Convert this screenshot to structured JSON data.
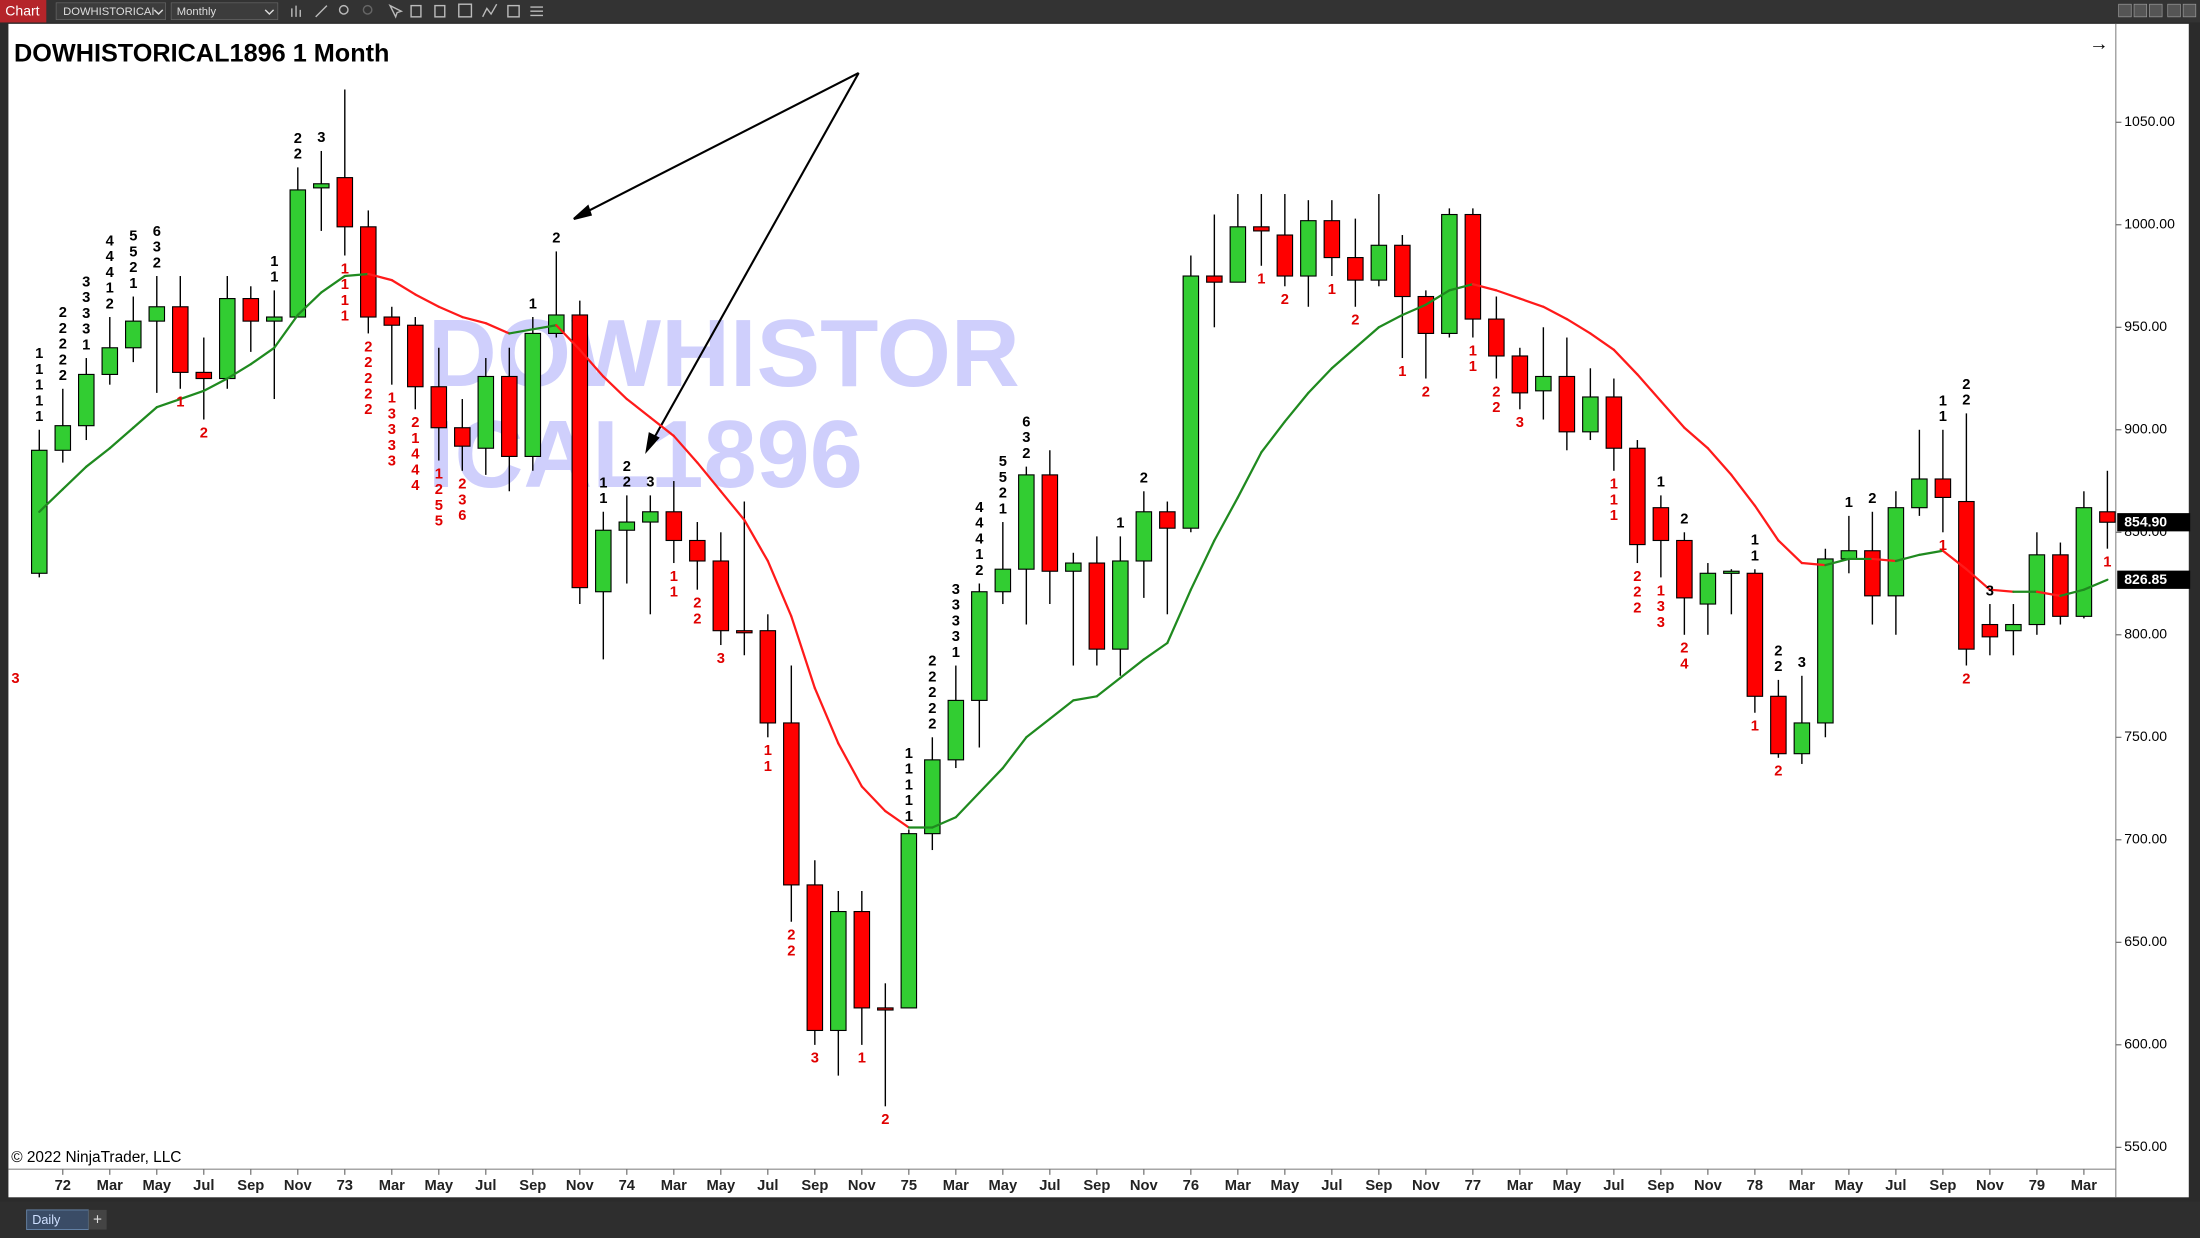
{
  "toolbar": {
    "chart_tab": "Chart",
    "instrument": "DOWHISTORICAI",
    "interval": "Monthly"
  },
  "nav_arrow": "→",
  "watermark": "DOWHISTORICAL1896",
  "copyright": "© 2022 NinjaTrader, LLC",
  "tabs": [
    "Daily"
  ],
  "add_tab": "+",
  "chart_data": {
    "type": "candlestick",
    "title": "DOWHISTORICAL1896 1 Month",
    "categories": [
      null,
      "72",
      null,
      "Mar",
      null,
      "May",
      null,
      "Jul",
      null,
      "Sep",
      null,
      "Nov",
      null,
      "73",
      null,
      "Mar",
      null,
      "May",
      null,
      "Jul",
      null,
      "Sep",
      null,
      "Nov",
      null,
      "74",
      null,
      "Mar",
      null,
      "May",
      null,
      "Jul",
      null,
      "Sep",
      null,
      "Nov",
      null,
      "75",
      null,
      "Mar",
      null,
      "May",
      null,
      "Jul",
      null,
      "Sep",
      null,
      "Nov",
      null,
      "76",
      null,
      "Mar",
      null,
      "May",
      null,
      "Jul",
      null,
      "Sep",
      null,
      "Nov",
      null,
      "77",
      null,
      "Mar",
      null,
      "May",
      null,
      "Jul",
      null,
      "Sep",
      null,
      "Nov",
      null,
      "78",
      null,
      "Mar",
      null,
      "May",
      null,
      "Jul",
      null,
      "Sep",
      null,
      "Nov",
      null,
      "79",
      null,
      "Mar",
      null
    ],
    "open": [
      830,
      890,
      902,
      927,
      940,
      953,
      960,
      928,
      925,
      964,
      953,
      955,
      1018,
      1023,
      999,
      955,
      951,
      921,
      901,
      891,
      926,
      887,
      947,
      956,
      821,
      851,
      855,
      860,
      846,
      836,
      802,
      802,
      757,
      678,
      607,
      665,
      618,
      618,
      703,
      739,
      768,
      821,
      832,
      878,
      831,
      835,
      793,
      836,
      860,
      852,
      975,
      972,
      999,
      995,
      975,
      1002,
      984,
      973,
      990,
      965,
      947,
      1005,
      954,
      936,
      919,
      926,
      899,
      916,
      891,
      862,
      846,
      815,
      830,
      830,
      770,
      742,
      757,
      837,
      841,
      819,
      862,
      876,
      865,
      805,
      802,
      805,
      839,
      809,
      860
    ],
    "high": [
      900,
      920,
      935,
      955,
      965,
      975,
      975,
      945,
      975,
      970,
      968,
      1028,
      1036,
      1066,
      1007,
      960,
      955,
      940,
      915,
      935,
      940,
      955,
      987,
      963,
      860,
      868,
      868,
      875,
      855,
      850,
      865,
      810,
      785,
      690,
      675,
      675,
      630,
      705,
      750,
      785,
      825,
      855,
      882,
      890,
      840,
      848,
      848,
      870,
      865,
      985,
      1005,
      1015,
      1015,
      1015,
      1012,
      1012,
      1003,
      1015,
      995,
      968,
      1008,
      1008,
      965,
      940,
      950,
      945,
      930,
      925,
      895,
      868,
      850,
      835,
      832,
      832,
      778,
      780,
      842,
      858,
      860,
      870,
      900,
      900,
      908,
      815,
      815,
      850,
      845,
      870,
      880
    ],
    "low": [
      828,
      884,
      895,
      922,
      933,
      918,
      920,
      905,
      920,
      938,
      915,
      955,
      997,
      985,
      947,
      922,
      910,
      885,
      880,
      878,
      870,
      880,
      945,
      815,
      788,
      825,
      810,
      835,
      822,
      795,
      790,
      750,
      660,
      600,
      585,
      600,
      570,
      618,
      695,
      735,
      745,
      815,
      805,
      815,
      785,
      785,
      780,
      818,
      810,
      850,
      950,
      972,
      980,
      970,
      960,
      975,
      960,
      970,
      935,
      925,
      945,
      945,
      925,
      910,
      905,
      890,
      895,
      880,
      835,
      828,
      800,
      800,
      810,
      762,
      740,
      737,
      750,
      830,
      805,
      800,
      858,
      850,
      785,
      790,
      790,
      800,
      805,
      808,
      842
    ],
    "close": [
      890,
      902,
      927,
      940,
      953,
      960,
      928,
      925,
      964,
      953,
      955,
      1017,
      1020,
      999,
      955,
      951,
      921,
      901,
      892,
      926,
      887,
      947,
      956,
      823,
      851,
      855,
      860,
      846,
      836,
      802,
      801,
      757,
      678,
      607,
      665,
      618,
      617,
      703,
      739,
      768,
      821,
      832,
      878,
      831,
      835,
      793,
      836,
      860,
      852,
      975,
      972,
      999,
      997,
      975,
      1002,
      984,
      973,
      990,
      965,
      947,
      1005,
      954,
      936,
      918,
      926,
      899,
      916,
      891,
      844,
      846,
      818,
      830,
      831,
      770,
      742,
      757,
      837,
      841,
      819,
      862,
      876,
      867,
      793,
      799,
      805,
      839,
      809,
      862,
      854.9
    ],
    "up_color": "#32cd32",
    "down_color": "#ff0000",
    "ma": {
      "values": [
        860,
        871,
        882,
        891,
        901,
        911,
        915,
        919,
        925,
        932,
        940,
        956,
        967,
        975,
        976,
        973,
        966,
        960,
        955,
        952,
        947,
        949,
        951,
        939,
        926,
        915,
        906,
        897,
        884,
        870,
        856,
        836,
        809,
        774,
        747,
        726,
        714,
        706,
        706,
        711,
        723,
        735,
        750,
        759,
        768,
        770,
        779,
        788,
        796,
        822,
        846,
        867,
        889,
        904,
        918,
        930,
        940,
        950,
        956,
        961,
        968,
        971,
        968,
        964,
        960,
        954,
        947,
        939,
        927,
        914,
        901,
        891,
        878,
        863,
        846,
        835,
        834,
        837,
        837,
        836,
        839,
        841,
        832,
        822,
        821,
        821,
        819,
        822,
        826.85
      ],
      "rising_color": "#1f8a1f",
      "falling_color": "#ff1a1a"
    },
    "top_labels": [
      [
        "1",
        "1",
        "1",
        "1",
        "1"
      ],
      [
        "2",
        "2",
        "2",
        "2",
        "2"
      ],
      [
        "3",
        "3",
        "3",
        "3",
        "1"
      ],
      [
        "4",
        "4",
        "4",
        "1",
        "2"
      ],
      [
        "5",
        "5",
        "2",
        "1"
      ],
      [
        "6",
        "3",
        "2"
      ],
      null,
      null,
      null,
      null,
      [
        "1",
        "1"
      ],
      [
        "2",
        "2"
      ],
      [
        "3"
      ],
      null,
      null,
      null,
      null,
      null,
      null,
      null,
      null,
      [
        "1"
      ],
      [
        "2"
      ],
      null,
      [
        "1",
        "1"
      ],
      [
        "2",
        "2"
      ],
      [
        "3"
      ],
      null,
      null,
      null,
      null,
      null,
      null,
      null,
      null,
      null,
      null,
      [
        "1",
        "1",
        "1",
        "1",
        "1"
      ],
      [
        "2",
        "2",
        "2",
        "2",
        "2"
      ],
      [
        "3",
        "3",
        "3",
        "3",
        "1"
      ],
      [
        "4",
        "4",
        "4",
        "1",
        "2"
      ],
      [
        "5",
        "5",
        "2",
        "1"
      ],
      [
        "6",
        "3",
        "2"
      ],
      null,
      null,
      null,
      [
        "1"
      ],
      [
        "2"
      ],
      null,
      null,
      null,
      null,
      null,
      null,
      null,
      null,
      null,
      null,
      null,
      null,
      null,
      null,
      null,
      null,
      null,
      null,
      null,
      null,
      null,
      [
        "1"
      ],
      [
        "2"
      ],
      null,
      null,
      [
        "1",
        "1"
      ],
      [
        "2",
        "2"
      ],
      [
        "3"
      ],
      null,
      [
        "1"
      ],
      [
        "2"
      ],
      null,
      null,
      [
        "1",
        "1"
      ],
      [
        "2",
        "2"
      ],
      [
        "3"
      ],
      null,
      null,
      null
    ],
    "bottom_labels": [
      null,
      null,
      null,
      null,
      null,
      null,
      [
        "1"
      ],
      [
        "2"
      ],
      null,
      null,
      null,
      null,
      null,
      [
        "1",
        "1",
        "1",
        "1"
      ],
      [
        "2",
        "2",
        "2",
        "2",
        "2"
      ],
      [
        "1",
        "3",
        "3",
        "3",
        "3"
      ],
      [
        "2",
        "1",
        "4",
        "4",
        "4"
      ],
      [
        "1",
        "2",
        "5",
        "5"
      ],
      [
        "2",
        "3",
        "6"
      ],
      null,
      null,
      null,
      null,
      null,
      null,
      null,
      null,
      [
        "1",
        "1"
      ],
      [
        "2",
        "2"
      ],
      [
        "3"
      ],
      null,
      [
        "1",
        "1"
      ],
      [
        "2",
        "2"
      ],
      [
        "3"
      ],
      null,
      [
        "1"
      ],
      [
        "2"
      ],
      null,
      null,
      null,
      null,
      null,
      null,
      null,
      null,
      null,
      null,
      null,
      null,
      null,
      null,
      null,
      [
        "1"
      ],
      [
        "2"
      ],
      null,
      [
        "1"
      ],
      [
        "2"
      ],
      null,
      [
        "1"
      ],
      [
        "2"
      ],
      null,
      [
        "1",
        "1"
      ],
      [
        "2",
        "2"
      ],
      [
        "3"
      ],
      null,
      null,
      null,
      [
        "1",
        "1",
        "1"
      ],
      [
        "2",
        "2",
        "2"
      ],
      [
        "1",
        "3",
        "3"
      ],
      [
        "2",
        "4"
      ],
      null,
      null,
      [
        "1"
      ],
      [
        "2"
      ],
      null,
      null,
      null,
      null,
      null,
      null,
      [
        "1"
      ],
      [
        "2"
      ],
      null,
      null,
      null,
      null,
      null,
      [
        "1"
      ]
    ],
    "edge_label": "3",
    "ylim": [
      540,
      1098
    ],
    "yticks": [
      {
        "value": 550,
        "label": "550.00"
      },
      {
        "value": 600,
        "label": "600.00"
      },
      {
        "value": 650,
        "label": "650.00"
      },
      {
        "value": 700,
        "label": "700.00"
      },
      {
        "value": 750,
        "label": "750.00"
      },
      {
        "value": 800,
        "label": "800.00"
      },
      {
        "value": 850,
        "label": "850.00"
      },
      {
        "value": 900,
        "label": "900.00"
      },
      {
        "value": 950,
        "label": "950.00"
      },
      {
        "value": 1000,
        "label": "1000.00"
      },
      {
        "value": 1050,
        "label": "1050.00"
      }
    ],
    "last_price": {
      "value": 854.9,
      "label": "854.90"
    },
    "ma_last": {
      "value": 826.85,
      "label": "826.85"
    }
  }
}
